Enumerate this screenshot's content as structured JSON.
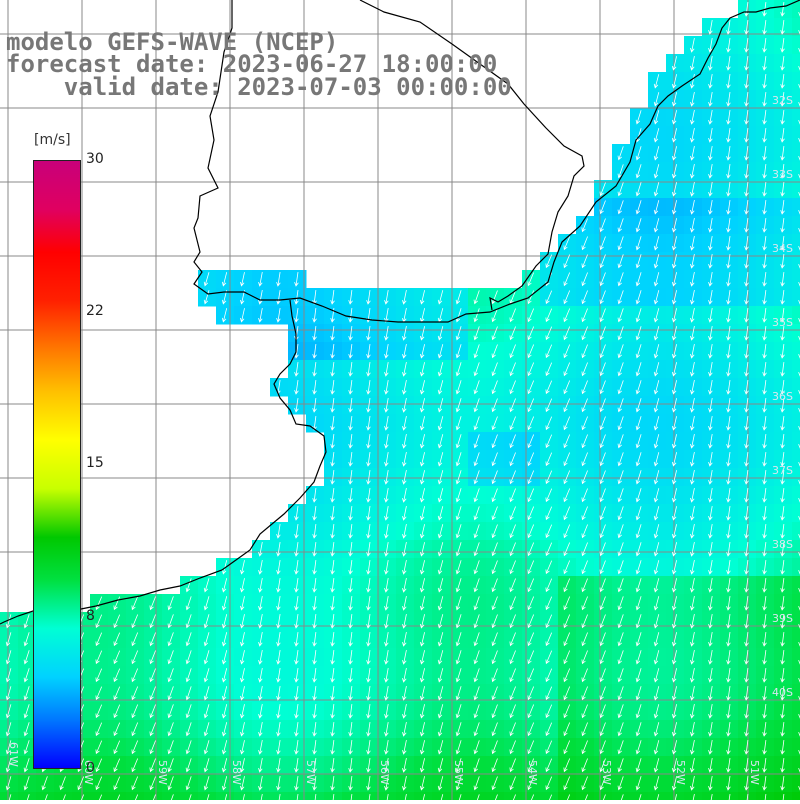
{
  "titles": {
    "line1": "modelo GEFS-WAVE (NCEP)",
    "line2": "forecast date: 2023-06-27 18:00:00",
    "line3": "    valid date: 2023-07-03 00:00:00"
  },
  "legend": {
    "unit": "[m/s]",
    "ticks": [
      "30",
      "22",
      "15",
      "8",
      "0"
    ],
    "tick_values": [
      30,
      22,
      15,
      8,
      0
    ],
    "range": [
      0,
      30
    ],
    "colors": [
      "#0000ff",
      "#0078ff",
      "#00d2ff",
      "#00ffd4",
      "#00e040",
      "#00c800",
      "#c8ff00",
      "#ffff00",
      "#ffc000",
      "#ff7800",
      "#ff2000",
      "#ff0000",
      "#e00060",
      "#c8007a"
    ]
  },
  "grid_labels": {
    "lat": [
      "32S",
      "33S",
      "34S",
      "35S",
      "36S",
      "37S",
      "38S",
      "39S",
      "40S"
    ],
    "lon": [
      "60W",
      "59W",
      "58W",
      "57W",
      "56W",
      "55W",
      "54W",
      "53W",
      "52W",
      "51W"
    ],
    "edge": "61W"
  },
  "colors": {
    "land": "#ffffff",
    "coast": "#000000",
    "grid": "#888888",
    "arrows": "#ffffff",
    "title": "#777777"
  },
  "wind_arrows": {
    "direction": "toward south-southwest"
  }
}
